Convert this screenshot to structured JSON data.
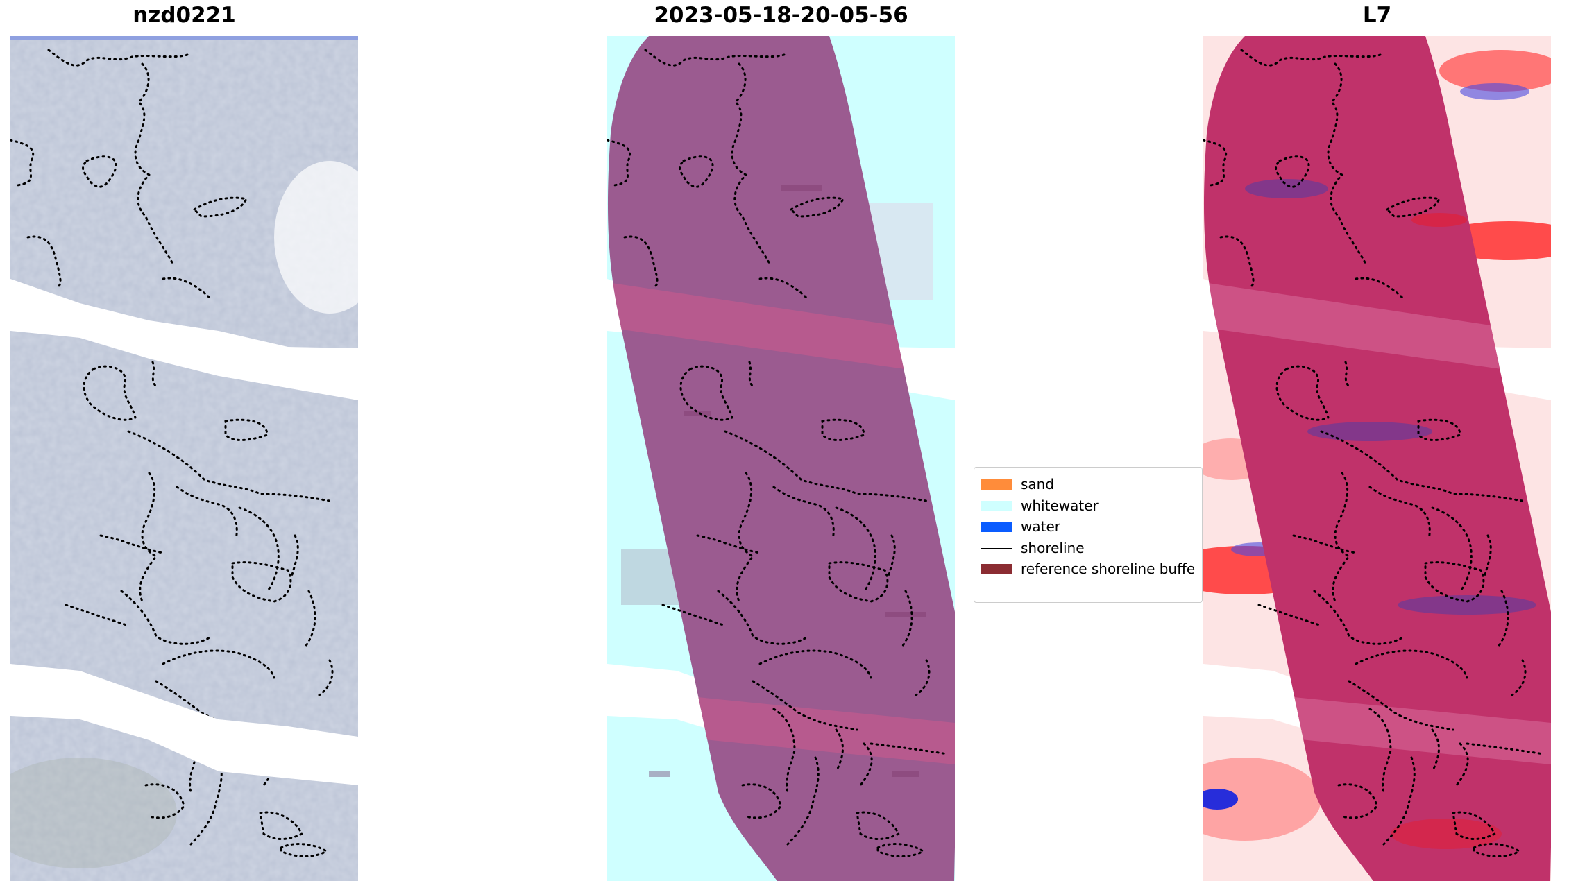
{
  "titles": {
    "left": "nzd0221",
    "middle": "2023-05-18-20-05-56",
    "right": "L7"
  },
  "legend": {
    "items": [
      {
        "label": "sand",
        "kind": "patch",
        "color": "#ff8c3a"
      },
      {
        "label": "whitewater",
        "kind": "patch",
        "color": "#cfffff"
      },
      {
        "label": "water",
        "kind": "patch",
        "color": "#0a5cff"
      },
      {
        "label": "shoreline",
        "kind": "line",
        "color": "#000000"
      },
      {
        "label": "reference shoreline buffe",
        "kind": "patch",
        "color": "#8b2c32"
      }
    ]
  },
  "colors": {
    "satellite_gray": "#bcc4d6",
    "whitewater": "#cfffff",
    "buffer_overlay": "#9b5b90",
    "buffer_band": "#b75a8e",
    "index_red": "#ff5a5a",
    "index_blue": "#4a4ae0",
    "buffer_index": "#c0326a",
    "shoreline": "#000000"
  }
}
